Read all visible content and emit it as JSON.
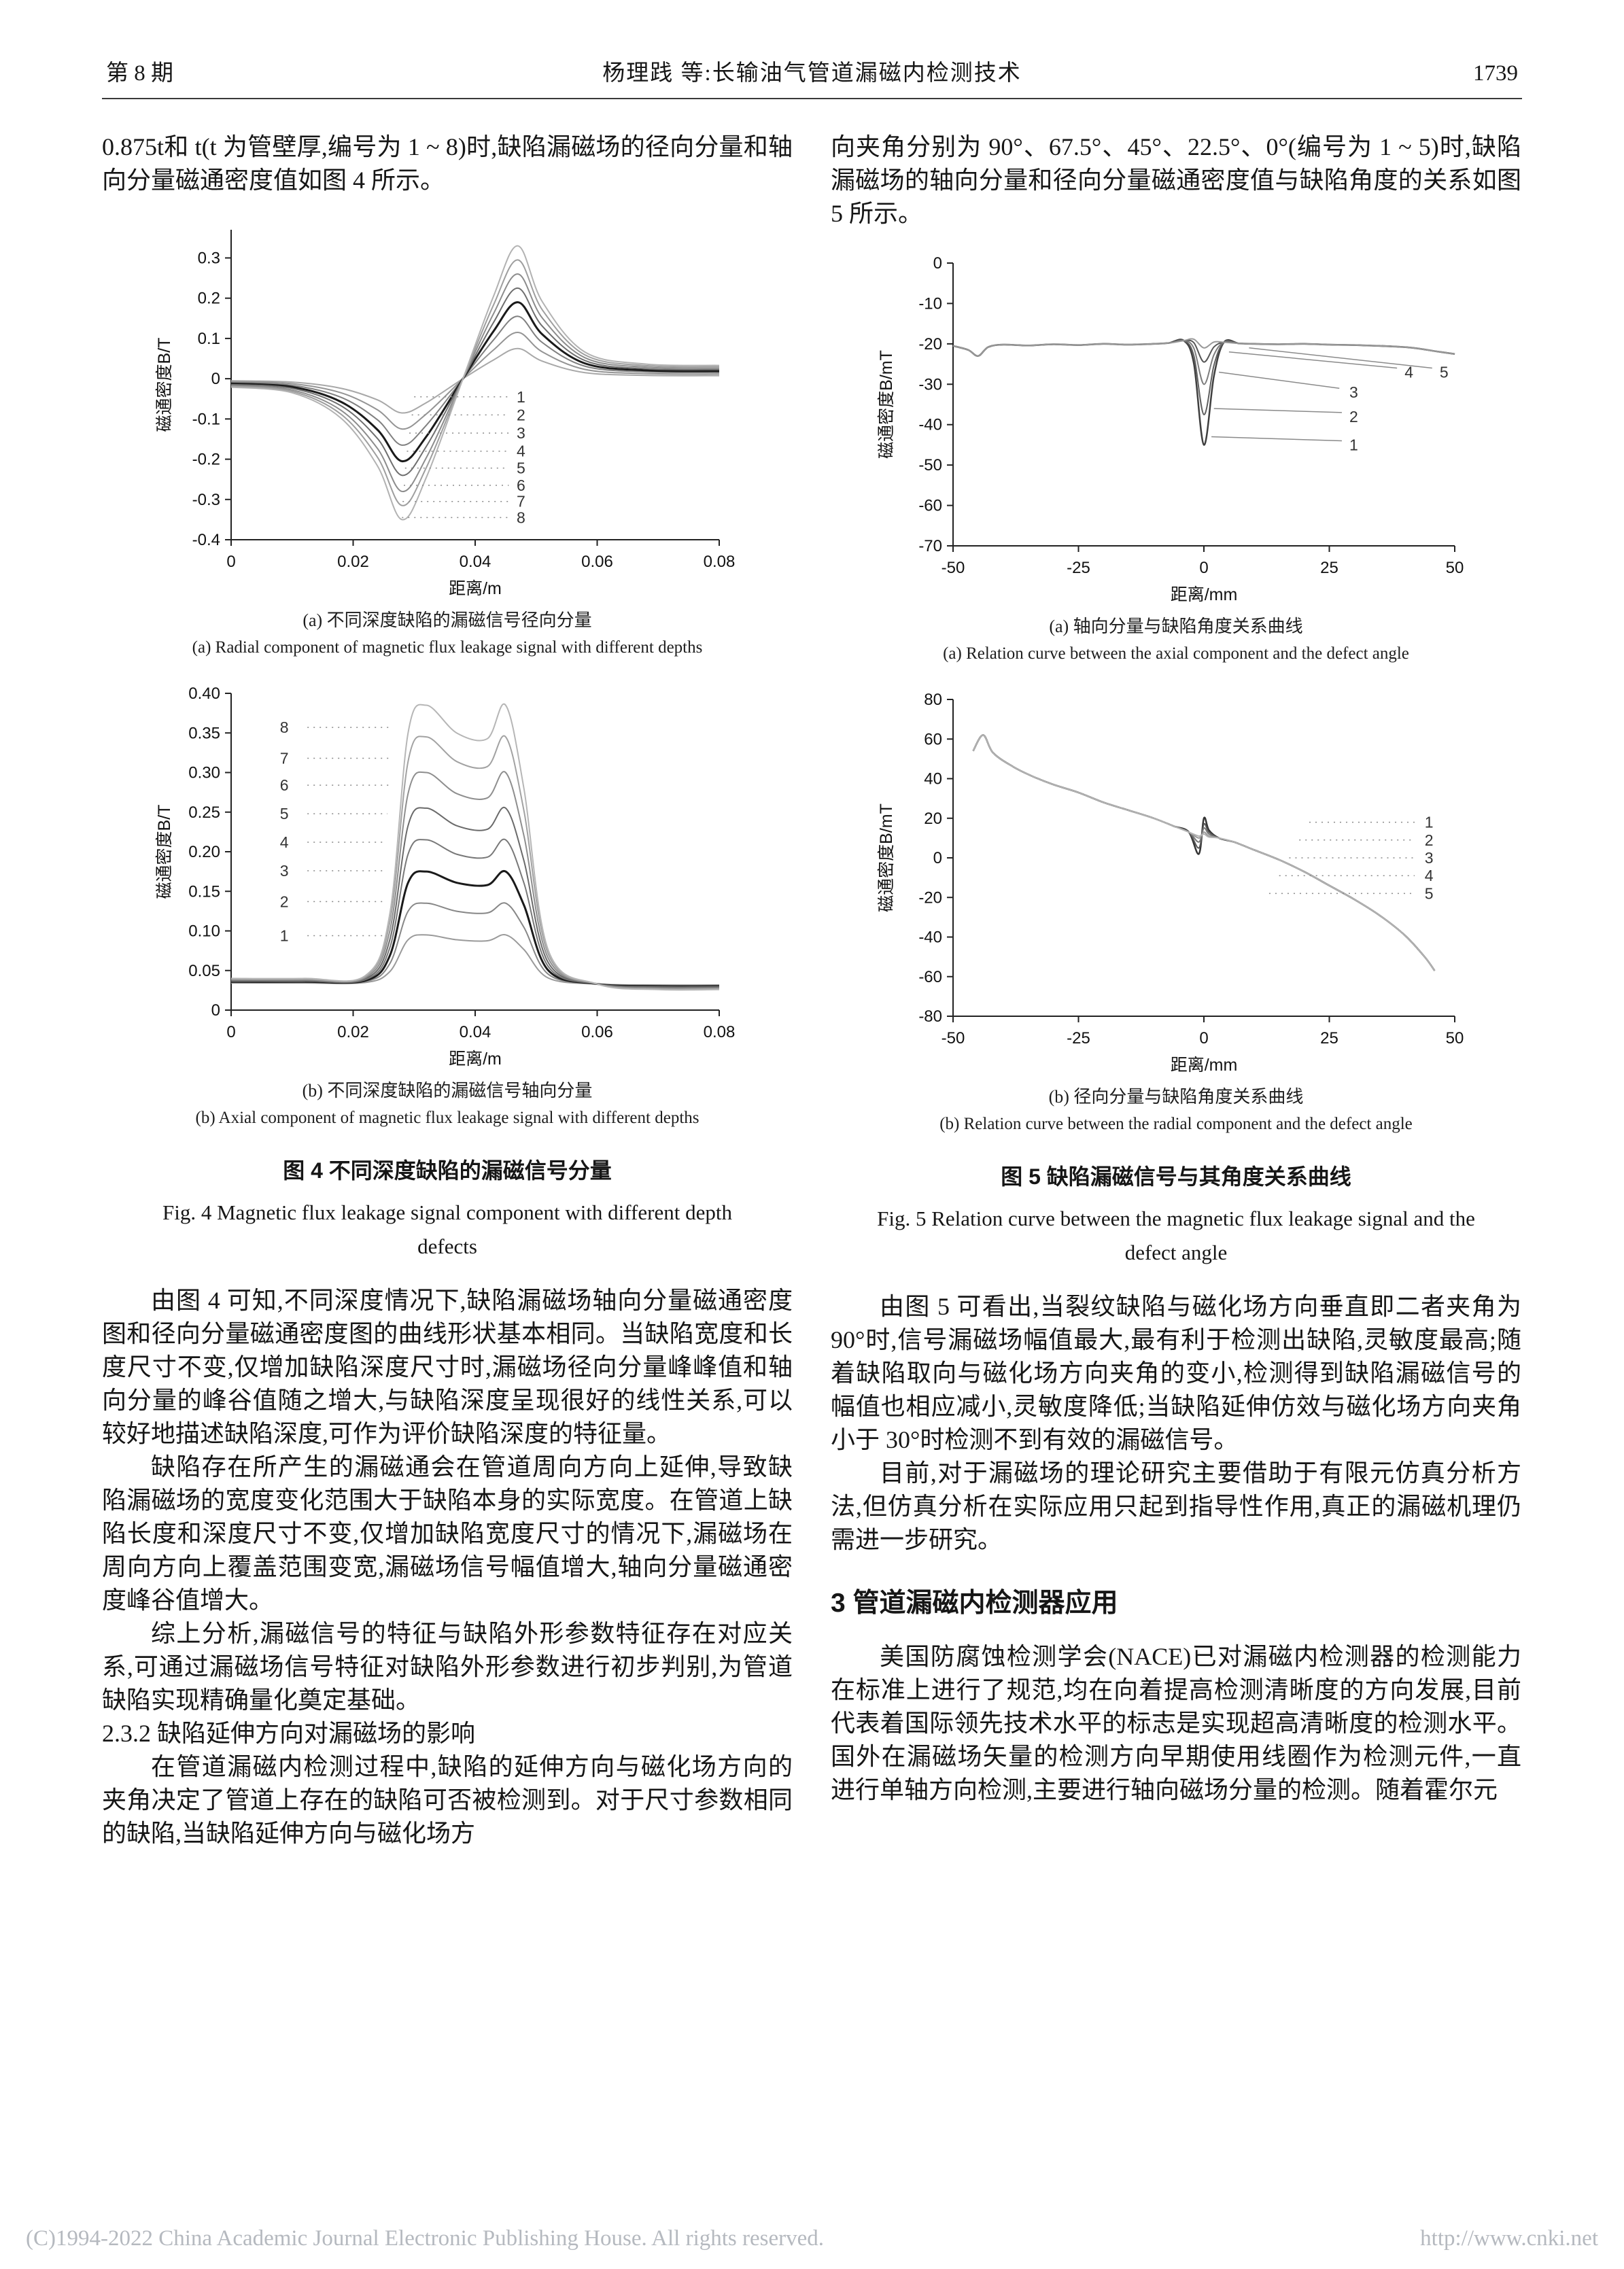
{
  "header": {
    "issue": "第 8 期",
    "running_title": "杨理践 等:长输油气管道漏磁内检测技术",
    "page_number": "1739"
  },
  "left": {
    "intro": "0.875t和 t(t 为管壁厚,编号为 1 ~ 8)时,缺陷漏磁场的径向分量和轴向分量磁通密度值如图 4 所示。",
    "paragraphs": [
      "由图 4 可知,不同深度情况下,缺陷漏磁场轴向分量磁通密度图和径向分量磁通密度图的曲线形状基本相同。当缺陷宽度和长度尺寸不变,仅增加缺陷深度尺寸时,漏磁场径向分量峰峰值和轴向分量的峰谷值随之增大,与缺陷深度呈现很好的线性关系,可以较好地描述缺陷深度,可作为评价缺陷深度的特征量。",
      "缺陷存在所产生的漏磁通会在管道周向方向上延伸,导致缺陷漏磁场的宽度变化范围大于缺陷本身的实际宽度。在管道上缺陷长度和深度尺寸不变,仅增加缺陷宽度尺寸的情况下,漏磁场在周向方向上覆盖范围变宽,漏磁场信号幅值增大,轴向分量磁通密度峰谷值增大。",
      "综上分析,漏磁信号的特征与缺陷外形参数特征存在对应关系,可通过漏磁场信号特征对缺陷外形参数进行初步判别,为管道缺陷实现精确量化奠定基础。"
    ],
    "subsection_heading": "2.3.2  缺陷延伸方向对漏磁场的影响",
    "paragraph_after_heading": "在管道漏磁内检测过程中,缺陷的延伸方向与磁化场方向的夹角决定了管道上存在的缺陷可否被检测到。对于尺寸参数相同的缺陷,当缺陷延伸方向与磁化场方"
  },
  "right": {
    "intro": "向夹角分别为 90°、67.5°、45°、22.5°、0°(编号为 1 ~ 5)时,缺陷漏磁场的轴向分量和径向分量磁通密度值与缺陷角度的关系如图 5 所示。",
    "paragraphs": [
      "由图 5 可看出,当裂纹缺陷与磁化场方向垂直即二者夹角为 90°时,信号漏磁场幅值最大,最有利于检测出缺陷,灵敏度最高;随着缺陷取向与磁化场方向夹角的变小,检测得到缺陷漏磁信号的幅值也相应减小,灵敏度降低;当缺陷延伸仿效与磁化场方向夹角小于 30°时检测不到有效的漏磁信号。",
      "目前,对于漏磁场的理论研究主要借助于有限元仿真分析方法,但仿真分析在实际应用只起到指导性作用,真正的漏磁机理仍需进一步研究。"
    ],
    "section_heading": "3  管道漏磁内检测器应用",
    "section_paragraph": "美国防腐蚀检测学会(NACE)已对漏磁内检测器的检测能力在标准上进行了规范,均在向着提高检测清晰度的方向发展,目前代表着国际领先技术水平的标志是实现超高清晰度的检测水平。国外在漏磁场矢量的检测方向早期使用线圈作为检测元件,一直进行单轴方向检测,主要进行轴向磁场分量的检测。随着霍尔元"
  },
  "figures": {
    "fig4": {
      "sub_a_cn": "(a) 不同深度缺陷的漏磁信号径向分量",
      "sub_a_en": "(a) Radial component of magnetic flux leakage signal with different depths",
      "sub_b_cn": "(b) 不同深度缺陷的漏磁信号轴向分量",
      "sub_b_en": "(b) Axial component of magnetic flux leakage signal with different depths",
      "caption_cn": "图 4   不同深度缺陷的漏磁信号分量",
      "caption_en": "Fig. 4   Magnetic flux leakage signal component with different depth defects"
    },
    "fig5": {
      "sub_a_cn": "(a) 轴向分量与缺陷角度关系曲线",
      "sub_a_en": "(a) Relation curve between the axial component and the defect angle",
      "sub_b_cn": "(b) 径向分量与缺陷角度关系曲线",
      "sub_b_en": "(b) Relation curve between the radial component and the defect angle",
      "caption_cn": "图 5   缺陷漏磁信号与其角度关系曲线",
      "caption_en": "Fig. 5   Relation curve between the magnetic flux leakage signal and the defect angle"
    }
  },
  "chart_data": [
    {
      "id": "fig4a",
      "type": "line",
      "title": "Radial component of MFL signal with different defect depths (depths 0.125t–t, curves 1–8)",
      "xlabel": "距离/m",
      "ylabel": "磁通密度B/T",
      "xlim": [
        0,
        0.08
      ],
      "ylim": [
        -0.4,
        0.37
      ],
      "xticks": [
        0,
        0.02,
        0.04,
        0.06,
        0.08
      ],
      "xtick_labels": [
        "0",
        "0.02",
        "0.04",
        "0.06",
        "0.08"
      ],
      "yticks": [
        -0.4,
        -0.3,
        -0.2,
        -0.1,
        0,
        0.1,
        0.2,
        0.3
      ],
      "ytick_labels": [
        "-0.4",
        "-0.3",
        "-0.2",
        "-0.1",
        "0",
        "0.1",
        "0.2",
        "0.3"
      ],
      "x": [
        0,
        0.01,
        0.018,
        0.024,
        0.028,
        0.032,
        0.038,
        0.043,
        0.047,
        0.051,
        0.058,
        0.068,
        0.08
      ],
      "shape": [
        -0.06,
        -0.1,
        -0.28,
        -0.62,
        -1.0,
        -0.7,
        0.0,
        0.62,
        1.0,
        0.58,
        0.2,
        0.11,
        0.1
      ],
      "series": [
        {
          "label": "1",
          "valley": -0.085,
          "peak": 0.075,
          "color": "#a8a8a8",
          "width": 2
        },
        {
          "label": "2",
          "valley": -0.125,
          "peak": 0.115,
          "color": "#949494",
          "width": 2
        },
        {
          "label": "3",
          "valley": -0.165,
          "peak": 0.155,
          "color": "#808080",
          "width": 2
        },
        {
          "label": "4",
          "valley": -0.205,
          "peak": 0.19,
          "color": "#1a1a1a",
          "width": 3
        },
        {
          "label": "5",
          "valley": -0.24,
          "peak": 0.225,
          "color": "#6e6e6e",
          "width": 2
        },
        {
          "label": "6",
          "valley": -0.28,
          "peak": 0.26,
          "color": "#8c8c8c",
          "width": 2
        },
        {
          "label": "7",
          "valley": -0.315,
          "peak": 0.295,
          "color": "#9e9e9e",
          "width": 2
        },
        {
          "label": "8",
          "valley": -0.35,
          "peak": 0.33,
          "color": "#b2b2b2",
          "width": 2
        }
      ],
      "annotations": [
        {
          "text": "1",
          "tx": 0.0468,
          "ty": -0.045,
          "lx1": 0.03,
          "ly1": -0.045,
          "lx2": 0.0455,
          "ly2": -0.045,
          "style": "dotted"
        },
        {
          "text": "2",
          "tx": 0.0468,
          "ty": -0.09,
          "lx1": 0.0296,
          "ly1": -0.09,
          "lx2": 0.0455,
          "ly2": -0.09,
          "style": "dotted"
        },
        {
          "text": "3",
          "tx": 0.0468,
          "ty": -0.135,
          "lx1": 0.0292,
          "ly1": -0.135,
          "lx2": 0.0455,
          "ly2": -0.135,
          "style": "dotted"
        },
        {
          "text": "4",
          "tx": 0.0468,
          "ty": -0.18,
          "lx1": 0.0288,
          "ly1": -0.18,
          "lx2": 0.0455,
          "ly2": -0.18,
          "style": "dotted"
        },
        {
          "text": "5",
          "tx": 0.0468,
          "ty": -0.222,
          "lx1": 0.0285,
          "ly1": -0.222,
          "lx2": 0.0455,
          "ly2": -0.222,
          "style": "dotted"
        },
        {
          "text": "6",
          "tx": 0.0468,
          "ty": -0.265,
          "lx1": 0.0283,
          "ly1": -0.265,
          "lx2": 0.0455,
          "ly2": -0.265,
          "style": "dotted"
        },
        {
          "text": "7",
          "tx": 0.0468,
          "ty": -0.305,
          "lx1": 0.0281,
          "ly1": -0.305,
          "lx2": 0.0455,
          "ly2": -0.305,
          "style": "dotted"
        },
        {
          "text": "8",
          "tx": 0.0468,
          "ty": -0.345,
          "lx1": 0.028,
          "ly1": -0.345,
          "lx2": 0.0455,
          "ly2": -0.345,
          "style": "dotted"
        }
      ]
    },
    {
      "id": "fig4b",
      "type": "line",
      "title": "Axial component of MFL signal with different defect depths (curves 1–8)",
      "xlabel": "距离/m",
      "ylabel": "磁通密度B/T",
      "xlim": [
        0,
        0.08
      ],
      "ylim": [
        0,
        0.4
      ],
      "xticks": [
        0,
        0.02,
        0.04,
        0.06,
        0.08
      ],
      "xtick_labels": [
        "0",
        "0.02",
        "0.04",
        "0.06",
        "0.08"
      ],
      "yticks": [
        0,
        0.05,
        0.1,
        0.15,
        0.2,
        0.25,
        0.3,
        0.35,
        0.4
      ],
      "ytick_labels": [
        "0",
        "0.05",
        "0.10",
        "0.15",
        "0.20",
        "0.25",
        "0.30",
        "0.35",
        "0.40"
      ],
      "x": [
        0,
        0.012,
        0.022,
        0.026,
        0.029,
        0.032,
        0.037,
        0.042,
        0.045,
        0.048,
        0.052,
        0.06,
        0.07,
        0.08
      ],
      "baseline": 0.033,
      "rel": [
        0.02,
        0.02,
        0.03,
        0.25,
        0.9,
        1.0,
        0.9,
        0.88,
        1.0,
        0.7,
        0.12,
        0.0,
        -0.02,
        -0.02
      ],
      "series": [
        {
          "label": "1",
          "peak": 0.095,
          "color": "#9a9a9a",
          "width": 2
        },
        {
          "label": "2",
          "peak": 0.135,
          "color": "#878787",
          "width": 2
        },
        {
          "label": "3",
          "peak": 0.175,
          "color": "#1a1a1a",
          "width": 3
        },
        {
          "label": "4",
          "peak": 0.215,
          "color": "#787878",
          "width": 2
        },
        {
          "label": "5",
          "peak": 0.255,
          "color": "#6a6a6a",
          "width": 2
        },
        {
          "label": "6",
          "peak": 0.3,
          "color": "#8e8e8e",
          "width": 2
        },
        {
          "label": "7",
          "peak": 0.345,
          "color": "#a2a2a2",
          "width": 2
        },
        {
          "label": "8",
          "peak": 0.385,
          "color": "#b6b6b6",
          "width": 2
        }
      ],
      "annotations": [
        {
          "text": "8",
          "tx": 0.008,
          "ty": 0.357,
          "lx1": 0.0125,
          "ly1": 0.357,
          "lx2": 0.0262,
          "ly2": 0.357,
          "style": "dotted"
        },
        {
          "text": "7",
          "tx": 0.008,
          "ty": 0.318,
          "lx1": 0.0125,
          "ly1": 0.318,
          "lx2": 0.026,
          "ly2": 0.318,
          "style": "dotted"
        },
        {
          "text": "6",
          "tx": 0.008,
          "ty": 0.284,
          "lx1": 0.0125,
          "ly1": 0.284,
          "lx2": 0.0258,
          "ly2": 0.284,
          "style": "dotted"
        },
        {
          "text": "5",
          "tx": 0.008,
          "ty": 0.248,
          "lx1": 0.0125,
          "ly1": 0.248,
          "lx2": 0.0256,
          "ly2": 0.248,
          "style": "dotted"
        },
        {
          "text": "4",
          "tx": 0.008,
          "ty": 0.212,
          "lx1": 0.0125,
          "ly1": 0.212,
          "lx2": 0.0254,
          "ly2": 0.212,
          "style": "dotted"
        },
        {
          "text": "3",
          "tx": 0.008,
          "ty": 0.176,
          "lx1": 0.0125,
          "ly1": 0.176,
          "lx2": 0.0252,
          "ly2": 0.176,
          "style": "dotted"
        },
        {
          "text": "2",
          "tx": 0.008,
          "ty": 0.137,
          "lx1": 0.0125,
          "ly1": 0.137,
          "lx2": 0.025,
          "ly2": 0.137,
          "style": "dotted"
        },
        {
          "text": "1",
          "tx": 0.008,
          "ty": 0.094,
          "lx1": 0.0125,
          "ly1": 0.094,
          "lx2": 0.0248,
          "ly2": 0.094,
          "style": "dotted"
        }
      ]
    },
    {
      "id": "fig5a",
      "type": "line",
      "title": "Relation curve between the axial component and the defect angle (90°,67.5°,45°,22.5°,0° = curves 1–5)",
      "xlabel": "距离/mm",
      "ylabel": "磁通密度B/mT",
      "xlim": [
        -50,
        50
      ],
      "ylim": [
        -70,
        0
      ],
      "xticks": [
        -50,
        -25,
        0,
        25,
        50
      ],
      "xtick_labels": [
        "-50",
        "-25",
        "0",
        "25",
        "50"
      ],
      "yticks": [
        -70,
        -60,
        -50,
        -40,
        -30,
        -20,
        -10,
        0
      ],
      "ytick_labels": [
        "-70",
        "-60",
        "-50",
        "-40",
        "-30",
        "-20",
        "-10",
        "0"
      ],
      "x": [
        -50,
        -47,
        -45,
        -43,
        -40,
        -35,
        -30,
        -25,
        -20,
        -15,
        -10,
        -7,
        -4,
        -2,
        0,
        2,
        4,
        7,
        10,
        15,
        20,
        25,
        30,
        35,
        40,
        43,
        46,
        50
      ],
      "base_y": [
        -20.5,
        -21.5,
        -23,
        -20.8,
        -20.2,
        -20.4,
        -20.1,
        -20.3,
        -20,
        -20.2,
        -20,
        -19.8,
        -19.2,
        -18.6,
        -20,
        -19.2,
        -19.6,
        -19.9,
        -20,
        -20.1,
        -20,
        -20.2,
        -20.3,
        -20.5,
        -20.8,
        -21.2,
        -21.8,
        -22.5
      ],
      "dip_weights": [
        0,
        0,
        0,
        0,
        0,
        0,
        0,
        0,
        0,
        0,
        0,
        0,
        0,
        0.25,
        1,
        0.35,
        0,
        0,
        0,
        0,
        0,
        0,
        0,
        0,
        0,
        0,
        0,
        0
      ],
      "series": [
        {
          "label": "1",
          "dip": -25,
          "color": "#3f3f3f",
          "width": 2.5
        },
        {
          "label": "2",
          "dip": -17.5,
          "color": "#5f5f5f",
          "width": 2
        },
        {
          "label": "3",
          "dip": -10,
          "color": "#7d7d7d",
          "width": 2
        },
        {
          "label": "4",
          "dip": -4.5,
          "color": "#565656",
          "width": 2
        },
        {
          "label": "5",
          "dip": -1,
          "color": "#999999",
          "width": 2
        }
      ],
      "annotations": [
        {
          "text": "3",
          "tx": 29,
          "ty": -32,
          "lx1": 27,
          "ly1": -31,
          "lx2": 3,
          "ly2": -27,
          "style": "solid"
        },
        {
          "text": "4",
          "tx": 40,
          "ty": -27,
          "lx1": 38.5,
          "ly1": -26,
          "lx2": 5,
          "ly2": -22,
          "style": "solid"
        },
        {
          "text": "5",
          "tx": 47,
          "ty": -27,
          "lx1": 45.5,
          "ly1": -26,
          "lx2": 9,
          "ly2": -21,
          "style": "solid"
        },
        {
          "text": "2",
          "tx": 29,
          "ty": -38,
          "lx1": 27.5,
          "ly1": -37,
          "lx2": 2,
          "ly2": -36,
          "style": "solid"
        },
        {
          "text": "1",
          "tx": 29,
          "ty": -45,
          "lx1": 27.5,
          "ly1": -44,
          "lx2": 1.5,
          "ly2": -43,
          "style": "solid"
        }
      ]
    },
    {
      "id": "fig5b",
      "type": "line",
      "title": "Relation curve between the radial component and the defect angle (curves 1–5)",
      "xlabel": "距离/mm",
      "ylabel": "磁通密度B/mT",
      "xlim": [
        -50,
        50
      ],
      "ylim": [
        -80,
        80
      ],
      "xticks": [
        -50,
        -25,
        0,
        25,
        50
      ],
      "xtick_labels": [
        "-50",
        "-25",
        "0",
        "25",
        "50"
      ],
      "yticks": [
        -80,
        -60,
        -40,
        -20,
        0,
        20,
        40,
        60,
        80
      ],
      "ytick_labels": [
        "-80",
        "-60",
        "-40",
        "-20",
        "0",
        "20",
        "40",
        "60",
        "80"
      ],
      "x": [
        -46,
        -44,
        -42,
        -38,
        -34,
        -30,
        -25,
        -20,
        -15,
        -10,
        -6,
        -3,
        -1,
        0,
        1,
        3,
        6,
        10,
        15,
        20,
        25,
        30,
        35,
        40,
        44,
        46
      ],
      "common_y": [
        54,
        62,
        53,
        46,
        41,
        37,
        33,
        28,
        24,
        20,
        16,
        13,
        12,
        11,
        10,
        10,
        8,
        4,
        -1,
        -7,
        -14,
        -21,
        -29,
        -39,
        -50,
        -57
      ],
      "wiggle_indices": [
        12,
        13,
        14
      ],
      "series": [
        {
          "label": "1",
          "wiggle": [
            2,
            20,
            14
          ],
          "color": "#333333",
          "width": 2.5
        },
        {
          "label": "2",
          "wiggle": [
            5,
            17,
            13
          ],
          "color": "#555555",
          "width": 2
        },
        {
          "label": "3",
          "wiggle": [
            8,
            15,
            12
          ],
          "color": "#777777",
          "width": 2
        },
        {
          "label": "4",
          "wiggle": [
            10,
            13,
            11
          ],
          "color": "#979797",
          "width": 2
        },
        {
          "label": "5",
          "wiggle": [
            11,
            12,
            10.5
          ],
          "color": "#b3b3b3",
          "width": 2
        }
      ],
      "annotations": [
        {
          "text": "1",
          "tx": 44,
          "ty": 18,
          "lx1": 21,
          "ly1": 18,
          "lx2": 42,
          "ly2": 18,
          "style": "dotted"
        },
        {
          "text": "2",
          "tx": 44,
          "ty": 9,
          "lx1": 19,
          "ly1": 9,
          "lx2": 42,
          "ly2": 9,
          "style": "dotted"
        },
        {
          "text": "3",
          "tx": 44,
          "ty": 0,
          "lx1": 17,
          "ly1": 0,
          "lx2": 42,
          "ly2": 0,
          "style": "dotted"
        },
        {
          "text": "4",
          "tx": 44,
          "ty": -9,
          "lx1": 15,
          "ly1": -9,
          "lx2": 42,
          "ly2": -9,
          "style": "dotted"
        },
        {
          "text": "5",
          "tx": 44,
          "ty": -18,
          "lx1": 13,
          "ly1": -18,
          "lx2": 42,
          "ly2": -18,
          "style": "dotted"
        }
      ]
    }
  ],
  "footer": {
    "copyright": "(C)1994-2022 China Academic Journal Electronic Publishing House. All rights reserved.",
    "url": "http://www.cnki.net"
  }
}
